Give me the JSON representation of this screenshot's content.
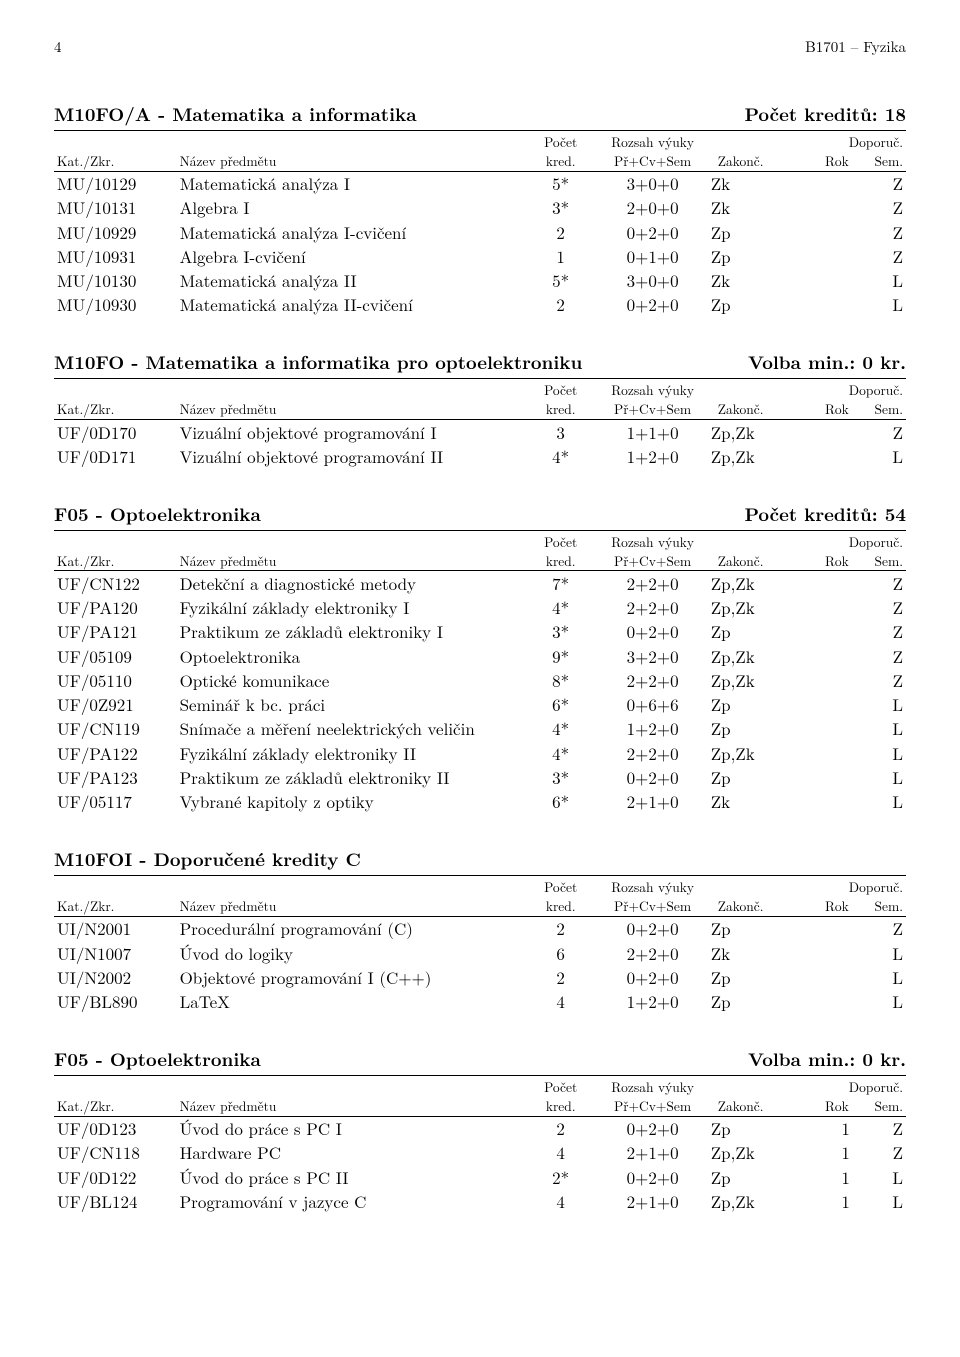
{
  "page": {
    "number": "4",
    "running": "B1701 – Fyzika"
  },
  "header_labels": {
    "kat": "Kat./Zkr.",
    "nazev": "Název předmětu",
    "pocet1": "Počet",
    "pocet2": "kred.",
    "rozsah1": "Rozsah výuky",
    "rozsah2": "Př+Cv+Sem",
    "zakonc": "Zakonč.",
    "doporuc": "Doporuč.",
    "rok": "Rok",
    "sem": "Sem."
  },
  "sections": [
    {
      "title": "M10FO/A - Matematika a informatika",
      "right": "Počet kreditů: 18",
      "rows": [
        {
          "kat": "MU/10129",
          "name": "Matematická analýza I",
          "kred": "5*",
          "roz": "3+0+0",
          "zak": "Zk",
          "rok": "",
          "sem": "Z"
        },
        {
          "kat": "MU/10131",
          "name": "Algebra I",
          "kred": "3*",
          "roz": "2+0+0",
          "zak": "Zk",
          "rok": "",
          "sem": "Z"
        },
        {
          "kat": "MU/10929",
          "name": "Matematická analýza I-cvičení",
          "kred": "2",
          "roz": "0+2+0",
          "zak": "Zp",
          "rok": "",
          "sem": "Z"
        },
        {
          "kat": "MU/10931",
          "name": "Algebra I-cvičení",
          "kred": "1",
          "roz": "0+1+0",
          "zak": "Zp",
          "rok": "",
          "sem": "Z"
        },
        {
          "kat": "MU/10130",
          "name": "Matematická analýza II",
          "kred": "5*",
          "roz": "3+0+0",
          "zak": "Zk",
          "rok": "",
          "sem": "L"
        },
        {
          "kat": "MU/10930",
          "name": "Matematická analýza II-cvičení",
          "kred": "2",
          "roz": "0+2+0",
          "zak": "Zp",
          "rok": "",
          "sem": "L"
        }
      ]
    },
    {
      "title": "M10FO - Matematika a informatika pro optoelektroniku",
      "right": "Volba min.: 0 kr.",
      "rows": [
        {
          "kat": "UF/0D170",
          "name": "Vizuální objektové programování I",
          "kred": "3",
          "roz": "1+1+0",
          "zak": "Zp,Zk",
          "rok": "",
          "sem": "Z"
        },
        {
          "kat": "UF/0D171",
          "name": "Vizuální objektové programování II",
          "kred": "4*",
          "roz": "1+2+0",
          "zak": "Zp,Zk",
          "rok": "",
          "sem": "L"
        }
      ]
    },
    {
      "title": "F05 - Optoelektronika",
      "right": "Počet kreditů: 54",
      "rows": [
        {
          "kat": "UF/CN122",
          "name": "Detekční a diagnostické metody",
          "kred": "7*",
          "roz": "2+2+0",
          "zak": "Zp,Zk",
          "rok": "",
          "sem": "Z"
        },
        {
          "kat": "UF/PA120",
          "name": "Fyzikální základy elektroniky I",
          "kred": "4*",
          "roz": "2+2+0",
          "zak": "Zp,Zk",
          "rok": "",
          "sem": "Z"
        },
        {
          "kat": "UF/PA121",
          "name": "Praktikum ze základů elektroniky I",
          "kred": "3*",
          "roz": "0+2+0",
          "zak": "Zp",
          "rok": "",
          "sem": "Z"
        },
        {
          "kat": "UF/05109",
          "name": "Optoelektronika",
          "kred": "9*",
          "roz": "3+2+0",
          "zak": "Zp,Zk",
          "rok": "",
          "sem": "Z"
        },
        {
          "kat": "UF/05110",
          "name": "Optické komunikace",
          "kred": "8*",
          "roz": "2+2+0",
          "zak": "Zp,Zk",
          "rok": "",
          "sem": "Z"
        },
        {
          "kat": "UF/0Z921",
          "name": "Seminář k bc. práci",
          "kred": "6*",
          "roz": "0+6+6",
          "zak": "Zp",
          "rok": "",
          "sem": "L"
        },
        {
          "kat": "UF/CN119",
          "name": "Snímače a měření neelektrických veličin",
          "kred": "4*",
          "roz": "1+2+0",
          "zak": "Zp",
          "rok": "",
          "sem": "L"
        },
        {
          "kat": "UF/PA122",
          "name": "Fyzikální základy elektroniky II",
          "kred": "4*",
          "roz": "2+2+0",
          "zak": "Zp,Zk",
          "rok": "",
          "sem": "L"
        },
        {
          "kat": "UF/PA123",
          "name": "Praktikum ze základů elektroniky II",
          "kred": "3*",
          "roz": "0+2+0",
          "zak": "Zp",
          "rok": "",
          "sem": "L"
        },
        {
          "kat": "UF/05117",
          "name": "Vybrané kapitoly z optiky",
          "kred": "6*",
          "roz": "2+1+0",
          "zak": "Zk",
          "rok": "",
          "sem": "L"
        }
      ]
    },
    {
      "title": "M10FOI - Doporučené kredity C",
      "right": "",
      "rows": [
        {
          "kat": "UI/N2001",
          "name": "Procedurální programování (C)",
          "kred": "2",
          "roz": "0+2+0",
          "zak": "Zp",
          "rok": "",
          "sem": "Z"
        },
        {
          "kat": "UI/N1007",
          "name": "Úvod do logiky",
          "kred": "6",
          "roz": "2+2+0",
          "zak": "Zk",
          "rok": "",
          "sem": "L"
        },
        {
          "kat": "UI/N2002",
          "name": "Objektové programování I (C++)",
          "kred": "2",
          "roz": "0+2+0",
          "zak": "Zp",
          "rok": "",
          "sem": "L"
        },
        {
          "kat": "UF/BL890",
          "name": "LaTeX",
          "kred": "4",
          "roz": "1+2+0",
          "zak": "Zp",
          "rok": "",
          "sem": "L"
        }
      ]
    },
    {
      "title": "F05 - Optoelektronika",
      "right": "Volba min.: 0 kr.",
      "rows": [
        {
          "kat": "UF/0D123",
          "name": "Úvod do práce s PC I",
          "kred": "2",
          "roz": "0+2+0",
          "zak": "Zp",
          "rok": "1",
          "sem": "Z"
        },
        {
          "kat": "UF/CN118",
          "name": "Hardware PC",
          "kred": "4",
          "roz": "2+1+0",
          "zak": "Zp,Zk",
          "rok": "1",
          "sem": "Z"
        },
        {
          "kat": "UF/0D122",
          "name": "Úvod do práce s PC II",
          "kred": "2*",
          "roz": "0+2+0",
          "zak": "Zp",
          "rok": "1",
          "sem": "L"
        },
        {
          "kat": "UF/BL124",
          "name": "Programování v jazyce C",
          "kred": "4",
          "roz": "2+1+0",
          "zak": "Zp,Zk",
          "rok": "1",
          "sem": "L"
        }
      ]
    }
  ]
}
